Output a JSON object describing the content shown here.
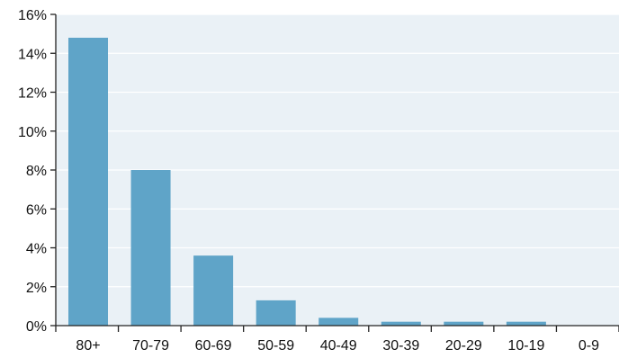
{
  "chart_data": {
    "type": "bar",
    "categories": [
      "80+",
      "70-79",
      "60-69",
      "50-59",
      "40-49",
      "30-39",
      "20-29",
      "10-19",
      "0-9"
    ],
    "values": [
      14.8,
      8.0,
      3.6,
      1.3,
      0.4,
      0.2,
      0.2,
      0.2,
      0.0
    ],
    "ylim": [
      0,
      16
    ],
    "yticks": [
      0,
      2,
      4,
      6,
      8,
      10,
      12,
      14,
      16
    ],
    "ytick_suffix": "%",
    "grid": true,
    "colors": {
      "bar": "#5fa4c8",
      "plot_background": "#eaf1f6",
      "grid": "#ffffff",
      "axis": "#222222"
    }
  }
}
